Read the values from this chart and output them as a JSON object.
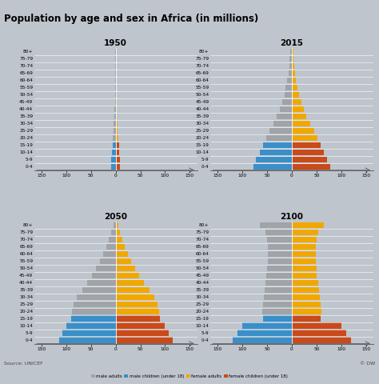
{
  "title": "Population by age and sex in Africa (in millions)",
  "source": "Source: UNICEF",
  "credit": "© DW",
  "background_color": "#bfc5cc",
  "age_labels": [
    "0-4",
    "5-9",
    "10-14",
    "15-19",
    "20-24",
    "25-29",
    "30-34",
    "35-39",
    "40-44",
    "45-49",
    "50-54",
    "55-59",
    "60-64",
    "65-69",
    "70-74",
    "75-79",
    "80+"
  ],
  "colors": {
    "male_adult": "#a0a4a8",
    "male_child": "#3a8fc9",
    "female_adult": "#f0a800",
    "female_child": "#c94a1a"
  },
  "pyramids": {
    "1950": {
      "title": "1950",
      "male": [
        9.0,
        8.5,
        7.5,
        6.5,
        5.5,
        4.5,
        3.6,
        2.9,
        2.3,
        1.8,
        1.4,
        1.1,
        0.9,
        0.7,
        0.55,
        0.45,
        0.35
      ],
      "female": [
        9.0,
        8.5,
        7.5,
        6.5,
        5.5,
        4.5,
        3.6,
        2.9,
        2.3,
        1.8,
        1.4,
        1.1,
        0.9,
        0.7,
        0.55,
        0.45,
        0.35
      ],
      "child_ages": [
        0,
        1,
        2,
        3
      ],
      "xlim": 150,
      "xtick_vals": [
        -150,
        -100,
        -50,
        0,
        50,
        100,
        150
      ],
      "xtick_labs": [
        "150",
        "100",
        "50",
        "0",
        "50",
        "100",
        "150"
      ]
    },
    "2015": {
      "title": "2015",
      "male": [
        78,
        72,
        65,
        58,
        52,
        45,
        37,
        30,
        24,
        19,
        15,
        12,
        9,
        7,
        5,
        4,
        3
      ],
      "female": [
        78,
        72,
        65,
        58,
        52,
        45,
        37,
        30,
        24,
        19,
        15,
        12,
        9,
        7,
        5,
        4,
        3
      ],
      "child_ages": [
        0,
        1,
        2,
        3
      ],
      "xlim": 150,
      "xtick_vals": [
        -150,
        -100,
        -50,
        0,
        50,
        100,
        150
      ],
      "xtick_labs": [
        "150",
        "100",
        "50",
        "0",
        "50",
        "100",
        "150"
      ]
    },
    "2050": {
      "title": "2050",
      "male": [
        115,
        108,
        100,
        90,
        88,
        85,
        78,
        68,
        58,
        48,
        40,
        32,
        25,
        19,
        14,
        9,
        5
      ],
      "female": [
        115,
        108,
        100,
        90,
        88,
        85,
        78,
        68,
        58,
        48,
        40,
        32,
        25,
        19,
        14,
        9,
        5
      ],
      "child_ages": [
        0,
        1,
        2,
        3
      ],
      "xlim": 150,
      "xtick_vals": [
        -150,
        -100,
        -50,
        0,
        50,
        100,
        150
      ],
      "xtick_labs": [
        "150",
        "100",
        "50",
        "0",
        "50",
        "100",
        "150"
      ]
    },
    "2100": {
      "title": "2100",
      "male": [
        120,
        110,
        100,
        58,
        60,
        58,
        57,
        55,
        53,
        51,
        50,
        49,
        48,
        48,
        50,
        53,
        65
      ],
      "female": [
        120,
        110,
        100,
        58,
        60,
        58,
        57,
        55,
        53,
        51,
        50,
        49,
        48,
        48,
        50,
        53,
        65
      ],
      "child_ages": [
        0,
        1,
        2,
        3
      ],
      "xlim": 150,
      "xtick_vals": [
        -150,
        -100,
        -50,
        0,
        50,
        100,
        150
      ],
      "xtick_labs": [
        "150",
        "100",
        "50",
        "0",
        "50",
        "100",
        "150"
      ]
    }
  },
  "year_order": [
    "1950",
    "2015",
    "2050",
    "2100"
  ]
}
